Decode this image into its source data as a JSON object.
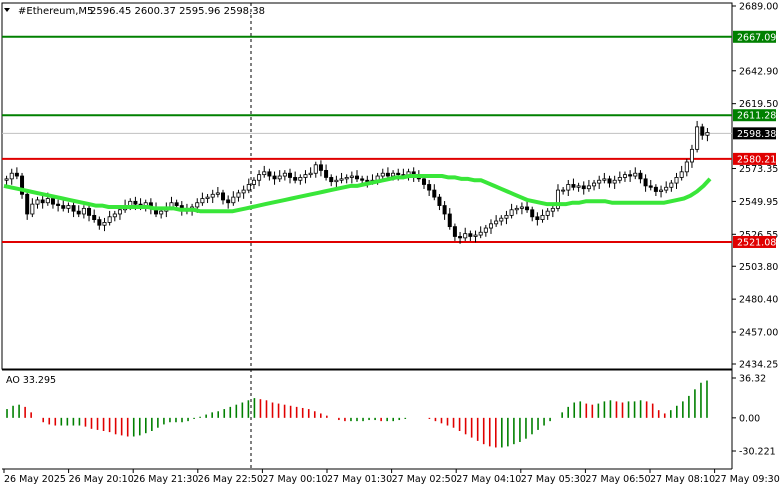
{
  "header": {
    "symbol": "#Ethereum,M5",
    "ohlc": "2596.45 2600.37 2595.96 2598.38"
  },
  "indicator_label": "AO 33.295",
  "chart_data": [
    {
      "type": "candlestick",
      "symbol": "#Ethereum",
      "timeframe": "M5",
      "ylim": [
        2434.25,
        2689.0
      ],
      "y_ticks": [
        "2689.00",
        "2642.90",
        "2619.50",
        "2573.35",
        "2549.95",
        "2526.55",
        "2503.80",
        "2480.40",
        "2457.00",
        "2434.25"
      ],
      "x_tick_labels": [
        "26 May 2025",
        "26 May 20:10",
        "26 May 21:30",
        "26 May 22:50",
        "27 May 00:10",
        "27 May 01:30",
        "27 May 02:50",
        "27 May 04:10",
        "27 May 05:30",
        "27 May 06:50",
        "27 May 08:10",
        "27 May 09:30"
      ],
      "levels": [
        {
          "value": 2667.09,
          "label": "2667.09",
          "color": "#008000"
        },
        {
          "value": 2611.28,
          "label": "2611.28",
          "color": "#008000"
        },
        {
          "value": 2580.21,
          "label": "2580.21",
          "color": "#e00000"
        },
        {
          "value": 2521.08,
          "label": "2521.08",
          "color": "#e00000"
        }
      ],
      "current_price": {
        "value": 2598.38,
        "label": "2598.38"
      },
      "close_series": [
        2566,
        2570,
        2568,
        2555,
        2541,
        2548,
        2551,
        2549,
        2552,
        2548,
        2547,
        2545,
        2547,
        2543,
        2541,
        2545,
        2540,
        2537,
        2533,
        2535,
        2539,
        2541,
        2544,
        2547,
        2550,
        2548,
        2546,
        2549,
        2545,
        2541,
        2543,
        2546,
        2549,
        2547,
        2544,
        2543,
        2546,
        2549,
        2552,
        2553,
        2555,
        2556,
        2551,
        2549,
        2553,
        2556,
        2558,
        2562,
        2565,
        2569,
        2571,
        2568,
        2566,
        2568,
        2570,
        2567,
        2565,
        2567,
        2569,
        2570,
        2576,
        2572,
        2567,
        2564,
        2565,
        2566,
        2567,
        2568,
        2566,
        2565,
        2564,
        2565,
        2568,
        2570,
        2568,
        2570,
        2569,
        2568,
        2571,
        2568,
        2566,
        2562,
        2558,
        2553,
        2547,
        2541,
        2532,
        2525,
        2524,
        2527,
        2525,
        2526,
        2528,
        2531,
        2534,
        2536,
        2538,
        2540,
        2544,
        2545,
        2546,
        2544,
        2539,
        2537,
        2540,
        2543,
        2545,
        2558,
        2558,
        2562,
        2560,
        2561,
        2559,
        2561,
        2563,
        2565,
        2566,
        2563,
        2565,
        2567,
        2569,
        2568,
        2570,
        2566,
        2561,
        2560,
        2557,
        2558,
        2560,
        2563,
        2567,
        2571,
        2578,
        2587,
        2603,
        2597,
        2599
      ],
      "ma_color": "#39e639",
      "ma_series": [
        2561,
        2560,
        2559,
        2558,
        2557,
        2556,
        2555,
        2554,
        2553,
        2552,
        2551,
        2550,
        2549,
        2548,
        2547,
        2547,
        2546,
        2546,
        2546,
        2546,
        2546,
        2546,
        2546,
        2545,
        2545,
        2545,
        2545,
        2544,
        2544,
        2544,
        2543,
        2543,
        2543,
        2543,
        2543,
        2543,
        2544,
        2545,
        2546,
        2547,
        2548,
        2549,
        2550,
        2551,
        2552,
        2553,
        2554,
        2555,
        2556,
        2557,
        2558,
        2559,
        2560,
        2561,
        2561,
        2562,
        2563,
        2564,
        2565,
        2566,
        2567,
        2567,
        2568,
        2568,
        2568,
        2568,
        2568,
        2568,
        2567,
        2567,
        2566,
        2566,
        2565,
        2565,
        2563,
        2561,
        2559,
        2557,
        2555,
        2553,
        2551,
        2550,
        2549,
        2548,
        2548,
        2548,
        2548,
        2549,
        2549,
        2550,
        2550,
        2550,
        2550,
        2549,
        2549,
        2549,
        2549,
        2549,
        2549,
        2549,
        2549,
        2549,
        2550,
        2551,
        2552,
        2554,
        2557,
        2561,
        2566
      ],
      "ao": {
        "label": "AO 33.295",
        "value": 33.295,
        "ylim": [
          -30.221,
          36.32
        ],
        "y_ticks": [
          "36.32",
          "0.00",
          "-30.221"
        ],
        "up_color": "#008000",
        "down_color": "#e00000",
        "values": [
          8,
          11,
          12,
          10,
          5,
          0,
          -4,
          -6,
          -7,
          -7,
          -7,
          -7,
          -7,
          -8,
          -10,
          -11,
          -12,
          -13,
          -15,
          -16,
          -17,
          -17,
          -16,
          -14,
          -12,
          -9,
          -6,
          -4,
          -4,
          -4,
          -3,
          -1,
          1,
          3,
          5,
          6,
          8,
          10,
          12,
          14,
          16,
          18,
          17,
          16,
          14,
          13,
          12,
          11,
          10,
          9,
          8,
          6,
          4,
          2,
          0,
          -2,
          -3,
          -3,
          -3,
          -3,
          -2,
          -2,
          -3,
          -3,
          -3,
          -2,
          -1,
          0,
          0,
          0,
          -1,
          -3,
          -5,
          -7,
          -9,
          -12,
          -15,
          -18,
          -21,
          -24,
          -26,
          -27,
          -27,
          -26,
          -24,
          -22,
          -19,
          -15,
          -11,
          -7,
          -3,
          0,
          5,
          10,
          14,
          15,
          13,
          12,
          13,
          15,
          16,
          15,
          14,
          15,
          15,
          16,
          15,
          13,
          7,
          4,
          7,
          11,
          15,
          20,
          26,
          32,
          34
        ]
      }
    }
  ]
}
